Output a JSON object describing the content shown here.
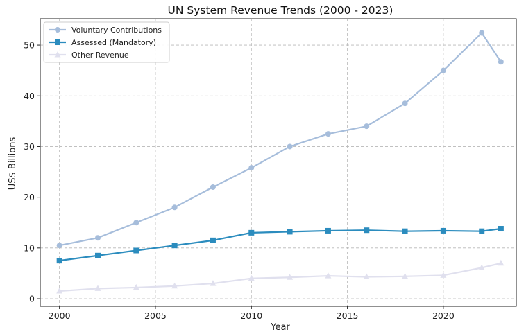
{
  "chart_data": {
    "type": "line",
    "title": "UN System Revenue Trends (2000 - 2023)",
    "xlabel": "Year",
    "ylabel": "US$ Billions",
    "xlim": [
      1999,
      2023.8
    ],
    "ylim": [
      -1.5,
      55.2
    ],
    "x_ticks": [
      2000,
      2005,
      2010,
      2015,
      2020
    ],
    "y_ticks": [
      0,
      10,
      20,
      30,
      40,
      50
    ],
    "grid": true,
    "grid_style": "dashed",
    "legend_position": "top-left",
    "x": [
      2000,
      2002,
      2004,
      2006,
      2008,
      2010,
      2012,
      2014,
      2016,
      2018,
      2020,
      2022,
      2023
    ],
    "series": [
      {
        "name": "Voluntary Contributions",
        "color": "#a6bddb",
        "marker": "circle",
        "values": [
          10.5,
          12.0,
          15.0,
          18.0,
          22.0,
          25.8,
          30.0,
          32.5,
          34.0,
          38.5,
          45.0,
          52.4,
          46.7
        ]
      },
      {
        "name": "Assessed (Mandatory)",
        "color": "#2b8cbe",
        "marker": "square",
        "values": [
          7.5,
          8.5,
          9.5,
          10.5,
          11.5,
          13.0,
          13.2,
          13.4,
          13.5,
          13.3,
          13.4,
          13.3,
          13.8
        ]
      },
      {
        "name": "Other Revenue",
        "color": "#e0e0ee",
        "marker": "triangle",
        "values": [
          1.5,
          2.0,
          2.2,
          2.5,
          3.0,
          4.0,
          4.2,
          4.5,
          4.3,
          4.4,
          4.6,
          6.1,
          7.0
        ]
      }
    ]
  }
}
